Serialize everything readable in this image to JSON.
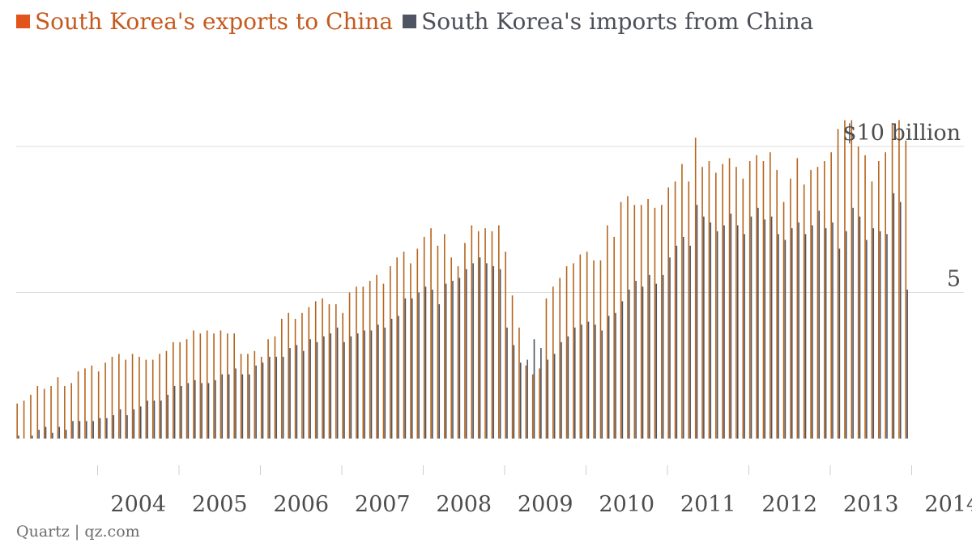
{
  "legend": {
    "exports_label": "South Korea's exports to China",
    "imports_label": "South Korea's imports from China",
    "exports_color": "#e1541b",
    "imports_color": "#505564"
  },
  "source": "Quartz | qz.com",
  "chart_data": {
    "type": "bar",
    "title": "",
    "xlabel": "",
    "ylabel": "",
    "x_start": "2003-01",
    "frequency": "monthly",
    "x_ticks": [
      "2004",
      "2005",
      "2006",
      "2007",
      "2008",
      "2009",
      "2010",
      "2011",
      "2012",
      "2013",
      "2014"
    ],
    "x_range": [
      "2003-01",
      "2014-12"
    ],
    "y_ticks": [
      {
        "value": 5,
        "label": "5"
      },
      {
        "value": 10,
        "label": "$10 billion"
      }
    ],
    "ylim": [
      -0.5,
      11.4
    ],
    "grid": "horizontal",
    "legend_position": "top-left",
    "series": [
      {
        "name": "South Korea's exports to China",
        "color": "#b5651d",
        "values": [
          1.2,
          1.3,
          1.5,
          1.8,
          1.7,
          1.8,
          2.1,
          1.8,
          1.9,
          2.3,
          2.4,
          2.5,
          2.3,
          2.6,
          2.8,
          2.9,
          2.7,
          2.9,
          2.8,
          2.7,
          2.7,
          2.9,
          3.0,
          3.3,
          3.3,
          3.4,
          3.7,
          3.6,
          3.7,
          3.6,
          3.7,
          3.6,
          3.6,
          2.9,
          2.9,
          3.0,
          2.8,
          3.4,
          3.5,
          4.1,
          4.3,
          4.1,
          4.3,
          4.5,
          4.7,
          4.8,
          4.6,
          4.6,
          4.3,
          5.0,
          5.2,
          5.2,
          5.4,
          5.6,
          5.3,
          5.9,
          6.2,
          6.4,
          6.0,
          6.5,
          6.9,
          7.2,
          6.6,
          7.0,
          6.2,
          5.9,
          6.7,
          7.3,
          7.1,
          7.2,
          7.1,
          7.3,
          6.4,
          4.9,
          3.8,
          2.5,
          2.2,
          2.4,
          4.8,
          5.2,
          5.5,
          5.9,
          6.0,
          6.3,
          6.4,
          6.1,
          6.1,
          7.3,
          6.9,
          8.1,
          8.3,
          8.0,
          8.0,
          8.2,
          7.9,
          8.0,
          8.6,
          8.8,
          9.4,
          8.8,
          10.3,
          9.3,
          9.5,
          9.1,
          9.4,
          9.6,
          9.3,
          8.9,
          9.5,
          9.7,
          9.5,
          9.8,
          9.2,
          8.1,
          8.9,
          9.6,
          8.7,
          9.2,
          9.3,
          9.5,
          9.8,
          10.6,
          10.9,
          10.9,
          10.0,
          9.7,
          8.8,
          9.5,
          9.8,
          10.8,
          10.9,
          10.2
        ],
        "note_units": "billion USD"
      },
      {
        "name": "South Korea's imports from China",
        "color": "#4f5461",
        "values": [
          0.1,
          0.0,
          0.1,
          0.3,
          0.4,
          0.2,
          0.4,
          0.3,
          0.6,
          0.6,
          0.6,
          0.6,
          0.7,
          0.7,
          0.8,
          1.0,
          0.8,
          1.0,
          1.1,
          1.3,
          1.3,
          1.3,
          1.5,
          1.8,
          1.8,
          1.9,
          2.0,
          1.9,
          1.9,
          2.0,
          2.2,
          2.2,
          2.4,
          2.2,
          2.2,
          2.5,
          2.6,
          2.8,
          2.8,
          2.8,
          3.1,
          3.2,
          3.0,
          3.4,
          3.3,
          3.5,
          3.6,
          3.8,
          3.3,
          3.5,
          3.6,
          3.7,
          3.7,
          3.9,
          3.8,
          4.1,
          4.2,
          4.8,
          4.8,
          5.0,
          5.2,
          5.1,
          4.6,
          5.3,
          5.4,
          5.5,
          5.8,
          6.0,
          6.2,
          6.0,
          5.9,
          5.8,
          3.8,
          3.2,
          2.6,
          2.7,
          3.4,
          3.1,
          2.7,
          2.9,
          3.3,
          3.5,
          3.8,
          3.9,
          4.0,
          3.9,
          3.7,
          4.2,
          4.3,
          4.7,
          5.1,
          5.4,
          5.2,
          5.6,
          5.3,
          5.6,
          6.2,
          6.6,
          6.9,
          6.6,
          8.0,
          7.6,
          7.4,
          7.1,
          7.3,
          7.7,
          7.3,
          7.0,
          7.6,
          7.9,
          7.5,
          7.6,
          7.0,
          6.8,
          7.2,
          7.4,
          7.0,
          7.3,
          7.8,
          7.2,
          7.4,
          6.5,
          7.1,
          7.9,
          7.6,
          6.8,
          7.2,
          7.1,
          7.0,
          8.4,
          8.1,
          5.1
        ]
      }
    ]
  }
}
